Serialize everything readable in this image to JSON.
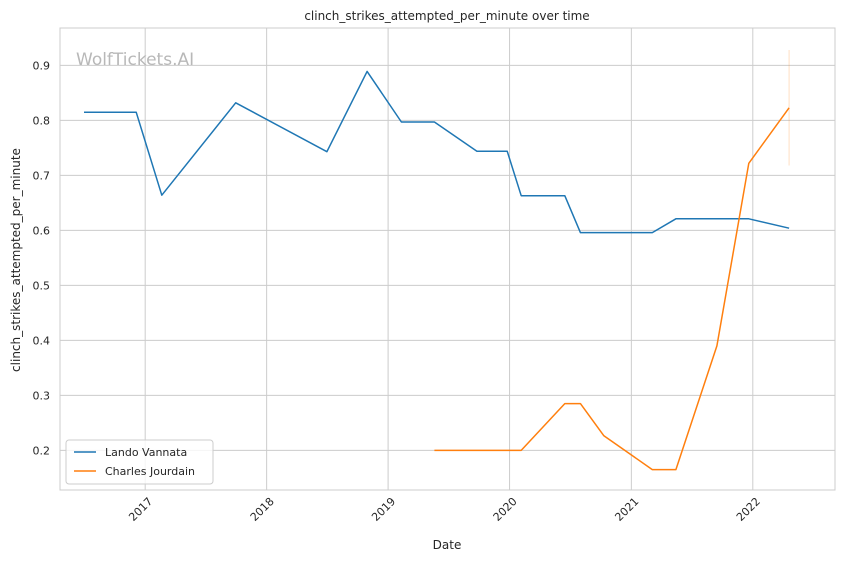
{
  "chart_data": {
    "type": "line",
    "title": "clinch_strikes_attempted_per_minute over time",
    "xlabel": "Date",
    "ylabel": "clinch_strikes_attempted_per_minute",
    "watermark": "WolfTickets.AI",
    "xlim": [
      "2016-04-20",
      "2022-09-05"
    ],
    "ylim": [
      0.128,
      0.968
    ],
    "x_ticks": [
      {
        "date": "2017-01-01",
        "label": "2017"
      },
      {
        "date": "2018-01-01",
        "label": "2018"
      },
      {
        "date": "2019-01-01",
        "label": "2019"
      },
      {
        "date": "2020-01-01",
        "label": "2020"
      },
      {
        "date": "2021-01-01",
        "label": "2021"
      },
      {
        "date": "2022-01-01",
        "label": "2022"
      }
    ],
    "y_ticks": [
      {
        "value": 0.2,
        "label": "0.2"
      },
      {
        "value": 0.3,
        "label": "0.3"
      },
      {
        "value": 0.4,
        "label": "0.4"
      },
      {
        "value": 0.5,
        "label": "0.5"
      },
      {
        "value": 0.6,
        "label": "0.6"
      },
      {
        "value": 0.7,
        "label": "0.7"
      },
      {
        "value": 0.8,
        "label": "0.8"
      },
      {
        "value": 0.9,
        "label": "0.9"
      }
    ],
    "grid": true,
    "legend_position": "lower-left",
    "series": [
      {
        "name": "Lando Vannata",
        "color": "#1f77b4",
        "points": [
          {
            "x": "2016-07-01",
            "y": 0.815
          },
          {
            "x": "2016-12-05",
            "y": 0.815
          },
          {
            "x": "2017-02-20",
            "y": 0.664
          },
          {
            "x": "2017-09-30",
            "y": 0.832
          },
          {
            "x": "2018-07-01",
            "y": 0.743
          },
          {
            "x": "2018-10-30",
            "y": 0.889
          },
          {
            "x": "2019-02-10",
            "y": 0.797
          },
          {
            "x": "2019-05-20",
            "y": 0.797
          },
          {
            "x": "2019-09-25",
            "y": 0.744
          },
          {
            "x": "2019-12-25",
            "y": 0.744
          },
          {
            "x": "2020-02-05",
            "y": 0.663
          },
          {
            "x": "2020-06-15",
            "y": 0.663
          },
          {
            "x": "2020-08-01",
            "y": 0.596
          },
          {
            "x": "2021-03-05",
            "y": 0.596
          },
          {
            "x": "2021-05-15",
            "y": 0.621
          },
          {
            "x": "2021-12-20",
            "y": 0.621
          },
          {
            "x": "2022-04-20",
            "y": 0.604
          }
        ]
      },
      {
        "name": "Charles Jourdain",
        "color": "#ff7f0e",
        "points": [
          {
            "x": "2019-05-20",
            "y": 0.2
          },
          {
            "x": "2020-02-05",
            "y": 0.2
          },
          {
            "x": "2020-06-15",
            "y": 0.285
          },
          {
            "x": "2020-08-01",
            "y": 0.285
          },
          {
            "x": "2020-10-10",
            "y": 0.227
          },
          {
            "x": "2021-03-05",
            "y": 0.165
          },
          {
            "x": "2021-05-15",
            "y": 0.165
          },
          {
            "x": "2021-09-15",
            "y": 0.39
          },
          {
            "x": "2021-12-20",
            "y": 0.722
          },
          {
            "x": "2022-04-20",
            "y": 0.823
          }
        ],
        "error_band": {
          "x": "2022-04-20",
          "y_low": 0.718,
          "y_high": 0.928
        }
      }
    ]
  }
}
